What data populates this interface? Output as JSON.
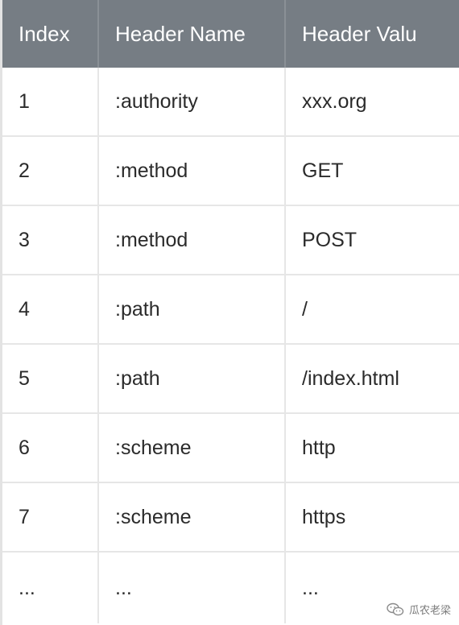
{
  "table": {
    "headers": [
      "Index",
      "Header Name",
      "Header Valu"
    ],
    "rows": [
      [
        "1",
        ":authority",
        "xxx.org"
      ],
      [
        "2",
        ":method",
        "GET"
      ],
      [
        "3",
        ":method",
        "POST"
      ],
      [
        "4",
        ":path",
        "/"
      ],
      [
        "5",
        ":path",
        "/index.html"
      ],
      [
        "6",
        ":scheme",
        "http"
      ],
      [
        "7",
        ":scheme",
        "https"
      ],
      [
        "...",
        "...",
        "..."
      ]
    ]
  },
  "watermark": {
    "icon": "wechat-icon",
    "text": "瓜农老梁"
  }
}
